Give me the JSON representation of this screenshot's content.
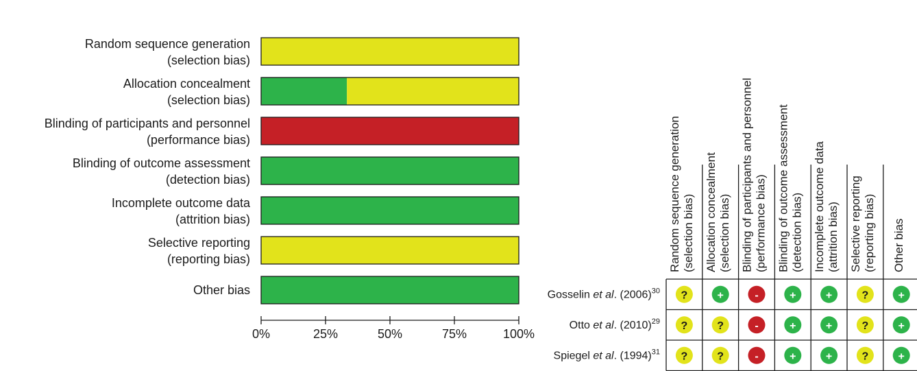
{
  "colors": {
    "low_risk": "#2db34a",
    "unclear_risk": "#e2e31b",
    "high_risk": "#c52026",
    "outline": "#1a1a1a"
  },
  "chart_data": [
    {
      "type": "bar",
      "orientation": "horizontal",
      "stacked": true,
      "categories": [
        [
          "Random sequence generation",
          "(selection bias)"
        ],
        [
          "Allocation concealment",
          "(selection bias)"
        ],
        [
          "Blinding of participants and personnel",
          "(performance bias)"
        ],
        [
          "Blinding of outcome assessment",
          "(detection bias)"
        ],
        [
          "Incomplete outcome data",
          "(attrition bias)"
        ],
        [
          "Selective reporting",
          "(reporting bias)"
        ],
        [
          "Other bias"
        ]
      ],
      "series": [
        {
          "key": "low",
          "color": "#2db34a",
          "values": [
            0,
            33.3,
            0,
            100,
            100,
            0,
            100
          ]
        },
        {
          "key": "unclear",
          "color": "#e2e31b",
          "values": [
            100,
            66.7,
            0,
            0,
            0,
            100,
            0
          ]
        },
        {
          "key": "high",
          "color": "#c52026",
          "values": [
            0,
            0,
            100,
            0,
            0,
            0,
            0
          ]
        }
      ],
      "xlim": [
        0,
        100
      ],
      "x_ticks": [
        "0%",
        "25%",
        "50%",
        "75%",
        "100%"
      ],
      "grid": false
    },
    {
      "type": "table",
      "columns": [
        [
          "Random sequence generation",
          "(selection bias)"
        ],
        [
          "Allocation concealment",
          "(selection bias)"
        ],
        [
          "Blinding of participants and personnel",
          "(performance bias)"
        ],
        [
          "Blinding of outcome assessment",
          "(detection bias)"
        ],
        [
          "Incomplete outcome data",
          "(attrition bias)"
        ],
        [
          "Selective reporting",
          "(reporting bias)"
        ],
        [
          "Other bias"
        ]
      ],
      "rows": [
        {
          "study": "Gosselin",
          "etal": "et al",
          "year": ". (2006)",
          "ref": "30",
          "cells": [
            "?",
            "+",
            "-",
            "+",
            "+",
            "?",
            "+"
          ]
        },
        {
          "study": "Otto",
          "etal": "et al",
          "year": ". (2010)",
          "ref": "29",
          "cells": [
            "?",
            "?",
            "-",
            "+",
            "+",
            "?",
            "+"
          ]
        },
        {
          "study": "Spiegel",
          "etal": "et al",
          "year": ". (1994)",
          "ref": "31",
          "cells": [
            "?",
            "?",
            "-",
            "+",
            "+",
            "?",
            "+"
          ]
        }
      ]
    }
  ]
}
